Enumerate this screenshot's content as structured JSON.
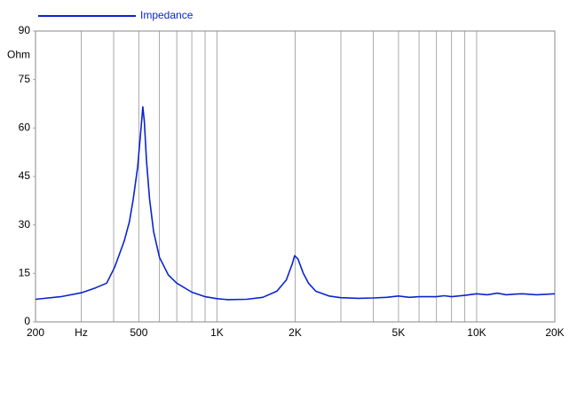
{
  "chart_data": {
    "type": "line",
    "legend": "top-left",
    "y_label": "Ohm",
    "log_x": true,
    "xlim": [
      200,
      20000
    ],
    "ylim": [
      0,
      90
    ],
    "yticks": [
      0,
      15,
      30,
      45,
      60,
      75,
      90
    ],
    "xticks": [
      200,
      {
        "value": 300,
        "label": "Hz"
      },
      500,
      {
        "value": 1000,
        "label": "1K"
      },
      {
        "value": 2000,
        "label": "2K"
      },
      {
        "value": 5000,
        "label": "5K"
      },
      {
        "value": 10000,
        "label": "10K"
      },
      {
        "value": 20000,
        "label": "20K"
      }
    ],
    "x_minor_ticks": [
      400,
      600,
      700,
      800,
      900,
      3000,
      4000,
      6000,
      7000,
      8000,
      9000
    ],
    "series": [
      {
        "name": "Impedance",
        "color": "#0a24d0",
        "x": [
          200,
          250,
          300,
          340,
          376,
          404,
          439,
          460,
          476,
          495,
          510,
          518,
          525,
          535,
          550,
          570,
          600,
          650,
          700,
          800,
          900,
          1000,
          1100,
          1300,
          1500,
          1700,
          1850,
          1950,
          1990,
          2050,
          2150,
          2250,
          2400,
          2700,
          3000,
          3500,
          4000,
          4500,
          5000,
          5500,
          6000,
          7000,
          7500,
          8000,
          9000,
          10000,
          11000,
          12000,
          13000,
          14000,
          15000,
          17000,
          20000
        ],
        "values": [
          7.0,
          7.8,
          9.0,
          10.5,
          12,
          17,
          25,
          31,
          38,
          48,
          60,
          66.5,
          62,
          50,
          38,
          28,
          20,
          14.5,
          12,
          9.2,
          7.8,
          7.2,
          6.9,
          7.0,
          7.6,
          9.5,
          13,
          18,
          20.5,
          19.5,
          15,
          12,
          9.5,
          8.0,
          7.5,
          7.3,
          7.4,
          7.6,
          8.0,
          7.6,
          7.8,
          7.8,
          8.1,
          7.8,
          8.2,
          8.7,
          8.4,
          8.9,
          8.4,
          8.6,
          8.7,
          8.4,
          8.7
        ]
      }
    ]
  }
}
